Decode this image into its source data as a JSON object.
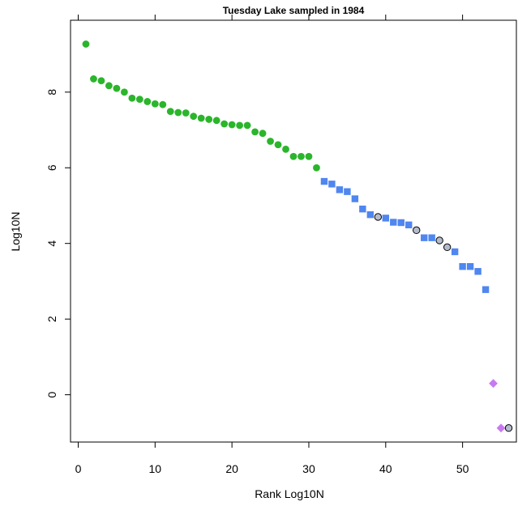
{
  "chart_data": {
    "type": "scatter",
    "title": "Tuesday Lake sampled in 1984",
    "xlabel": "Rank Log10N",
    "ylabel": "Log10N",
    "xlim": [
      -1,
      57
    ],
    "ylim": [
      -1.25,
      9.9
    ],
    "x_ticks": [
      0,
      10,
      20,
      30,
      40,
      50
    ],
    "y_ticks": [
      0,
      2,
      4,
      6,
      8
    ],
    "grid": false,
    "colors": {
      "green": "#2bb52b",
      "blue": "#4f86f0",
      "purple": "#c879f0",
      "grey_fill": "#b4bccc"
    },
    "series": [
      {
        "marker": "circle",
        "color": "#2bb52b",
        "points": [
          [
            1,
            9.27
          ],
          [
            2,
            8.35
          ],
          [
            3,
            8.3
          ],
          [
            4,
            8.17
          ],
          [
            5,
            8.1
          ],
          [
            6,
            8.0
          ],
          [
            7,
            7.84
          ],
          [
            8,
            7.81
          ],
          [
            9,
            7.75
          ],
          [
            10,
            7.69
          ],
          [
            11,
            7.67
          ],
          [
            12,
            7.49
          ],
          [
            13,
            7.46
          ],
          [
            14,
            7.45
          ],
          [
            15,
            7.36
          ],
          [
            16,
            7.31
          ],
          [
            17,
            7.28
          ],
          [
            18,
            7.25
          ],
          [
            19,
            7.16
          ],
          [
            20,
            7.14
          ],
          [
            21,
            7.12
          ],
          [
            22,
            7.12
          ],
          [
            23,
            6.95
          ],
          [
            24,
            6.91
          ],
          [
            25,
            6.7
          ],
          [
            26,
            6.61
          ],
          [
            27,
            6.49
          ],
          [
            28,
            6.3
          ],
          [
            29,
            6.3
          ],
          [
            30,
            6.3
          ],
          [
            31,
            6.0
          ]
        ]
      },
      {
        "marker": "square",
        "color": "#4f86f0",
        "points": [
          [
            32,
            5.64
          ],
          [
            33,
            5.57
          ],
          [
            34,
            5.42
          ],
          [
            35,
            5.37
          ],
          [
            36,
            5.18
          ],
          [
            37,
            4.91
          ],
          [
            38,
            4.76
          ],
          [
            40,
            4.67
          ],
          [
            41,
            4.56
          ],
          [
            42,
            4.55
          ],
          [
            43,
            4.49
          ],
          [
            45,
            4.15
          ],
          [
            46,
            4.15
          ],
          [
            49,
            3.78
          ],
          [
            50,
            3.39
          ],
          [
            51,
            3.39
          ],
          [
            52,
            3.26
          ],
          [
            53,
            2.78
          ]
        ]
      },
      {
        "marker": "circle-outline",
        "color": "#b4bccc",
        "points": [
          [
            39,
            4.7
          ],
          [
            44,
            4.35
          ],
          [
            47,
            4.08
          ],
          [
            48,
            3.9
          ]
        ]
      },
      {
        "marker": "diamond",
        "color": "#c879f0",
        "points": [
          [
            54,
            0.3
          ],
          [
            55,
            -0.88
          ]
        ]
      },
      {
        "marker": "circle-outline",
        "color": "#b4bccc",
        "points": [
          [
            56,
            -0.88
          ]
        ]
      }
    ]
  }
}
